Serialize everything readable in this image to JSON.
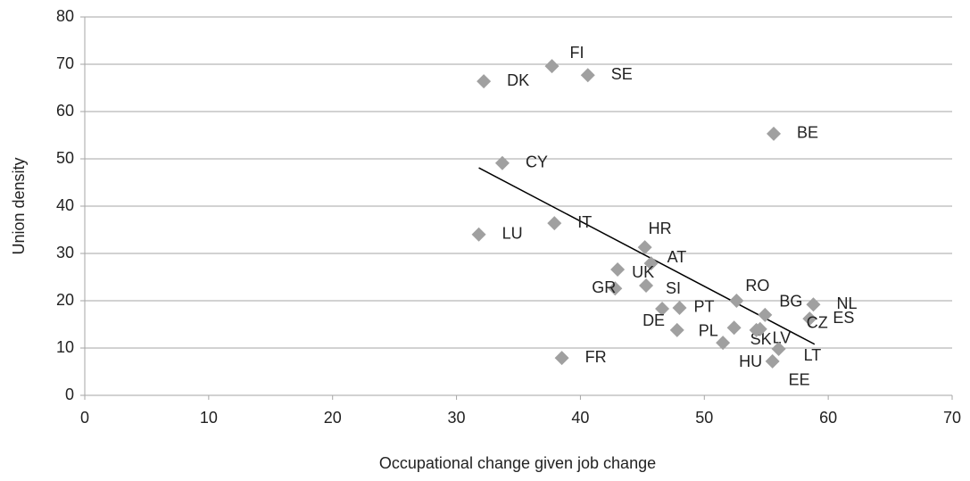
{
  "chart_data": {
    "type": "scatter",
    "x_label": "Occupational change given job change",
    "y_label": "Union density",
    "xlim": [
      0,
      70
    ],
    "xticks": [
      0,
      10,
      20,
      30,
      40,
      50,
      60,
      70
    ],
    "ylim": [
      0,
      80
    ],
    "yticks": [
      0,
      10,
      20,
      30,
      40,
      50,
      60,
      70,
      80
    ],
    "grid": true,
    "color": "#a0a0a0",
    "labels": [
      "FI",
      "DK",
      "SE",
      "BE",
      "CY",
      "IT",
      "LU",
      "HR",
      "AT",
      "UK",
      "GR",
      "SI",
      "DE",
      "PT",
      "PL",
      "RO",
      "BG",
      "NL",
      "ES",
      "SK",
      "LV",
      "HU",
      "LT",
      "EE",
      "CZ",
      "FR"
    ],
    "x": [
      37.7,
      32.2,
      40.6,
      55.6,
      33.7,
      37.9,
      31.8,
      45.2,
      45.7,
      43.0,
      42.8,
      45.3,
      46.6,
      48.0,
      47.8,
      52.6,
      54.9,
      58.8,
      58.5,
      52.4,
      54.2,
      51.5,
      56.0,
      55.5,
      54.5,
      38.5
    ],
    "y": [
      69.6,
      66.4,
      67.7,
      55.3,
      49.1,
      36.4,
      34.0,
      31.3,
      27.9,
      26.6,
      22.6,
      23.2,
      18.3,
      18.5,
      13.8,
      20.0,
      17.0,
      19.2,
      16.2,
      14.3,
      13.8,
      11.1,
      9.8,
      7.2,
      14.0,
      7.9
    ],
    "trendline": {
      "x": [
        31.8,
        58.9
      ],
      "y": [
        48.1,
        10.8
      ],
      "color": "#000000"
    }
  }
}
